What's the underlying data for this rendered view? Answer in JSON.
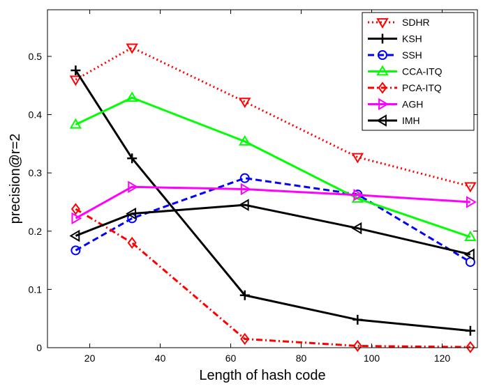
{
  "chart_data": {
    "type": "line",
    "title": "",
    "xlabel": "Length of hash code",
    "ylabel": "precision@r=2",
    "xlim": [
      8,
      130
    ],
    "ylim": [
      0,
      0.58
    ],
    "xticks": [
      20,
      40,
      60,
      80,
      100,
      120
    ],
    "yticks": [
      0,
      0.1,
      0.2,
      0.3,
      0.4,
      0.5
    ],
    "ytick_labels": [
      "0",
      "0.1",
      "0.2",
      "0.3",
      "0.4",
      "0.5"
    ],
    "grid": false,
    "legend_position": "top-right",
    "x": [
      16,
      32,
      64,
      96,
      128
    ],
    "series": [
      {
        "name": "SDHR",
        "color": "#ff0000",
        "dash": "dotted",
        "marker": "triangle-down",
        "values": [
          0.46,
          0.515,
          0.422,
          0.327,
          0.277
        ]
      },
      {
        "name": "KSH",
        "color": "#000000",
        "dash": "solid",
        "marker": "plus",
        "values": [
          0.476,
          0.325,
          0.09,
          0.048,
          0.029
        ]
      },
      {
        "name": "SSH",
        "color": "#0000ff",
        "dash": "dashed",
        "marker": "circle",
        "values": [
          0.167,
          0.222,
          0.291,
          0.263,
          0.147
        ]
      },
      {
        "name": "CCA-ITQ",
        "color": "#00ff00",
        "dash": "solid",
        "marker": "triangle-up",
        "values": [
          0.383,
          0.429,
          0.354,
          0.256,
          0.19
        ]
      },
      {
        "name": "PCA-ITQ",
        "color": "#ff0000",
        "dash": "dashdot",
        "marker": "diamond",
        "values": [
          0.238,
          0.18,
          0.015,
          0.003,
          0.001
        ]
      },
      {
        "name": "AGH",
        "color": "#ff00ff",
        "dash": "solid",
        "marker": "triangle-right",
        "values": [
          0.222,
          0.276,
          0.272,
          0.262,
          0.25
        ]
      },
      {
        "name": "IMH",
        "color": "#000000",
        "dash": "solid",
        "marker": "triangle-left",
        "values": [
          0.192,
          0.23,
          0.245,
          0.205,
          0.16
        ]
      }
    ]
  }
}
